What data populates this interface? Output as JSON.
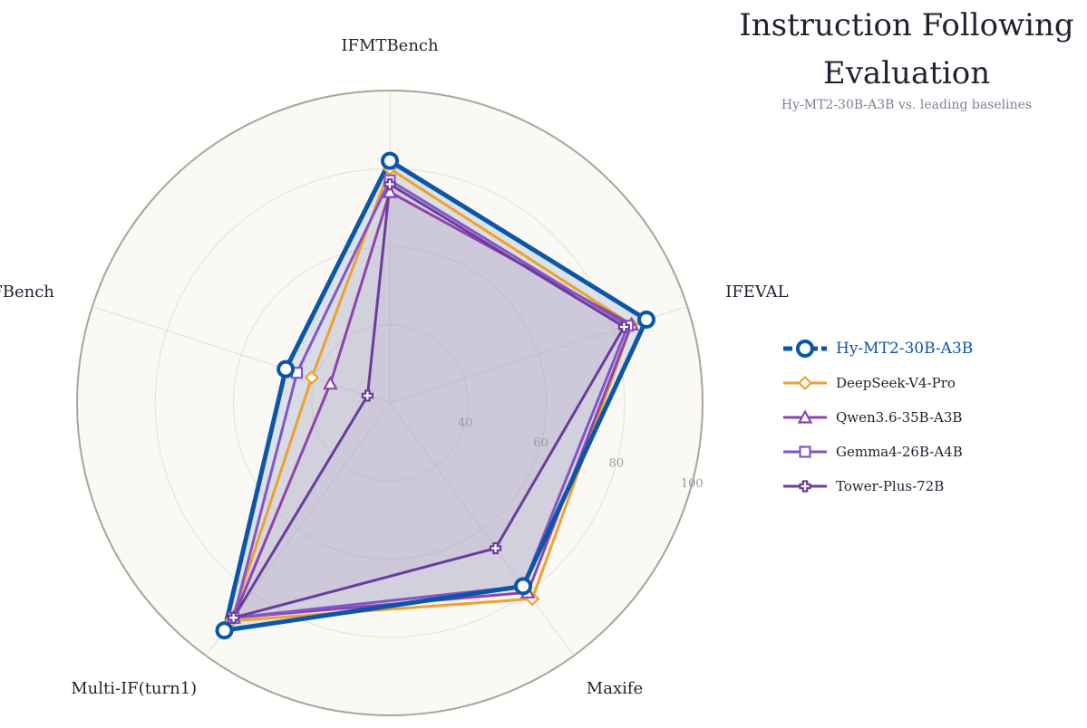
{
  "chart_data": {
    "type": "radar",
    "title": "Instruction Following\nEvaluation",
    "title_lines": [
      "Instruction Following",
      "Evaluation"
    ],
    "subtitle": "Hy-MT2-30B-A3B vs. leading baselines",
    "axes": [
      "IFMTBench",
      "IFEVAL",
      "Maxife",
      "Multi-IF(turn1)",
      "IFBench"
    ],
    "radial_range": [
      20,
      100
    ],
    "radial_ticks": [
      40,
      60,
      80,
      100
    ],
    "radial_tick_labels": [
      "40",
      "60",
      "80",
      "100"
    ],
    "grid": true,
    "legend_position": "right",
    "series": [
      {
        "name": "Hy-MT2-30B-A3B",
        "values": [
          82,
          89,
          78,
          92,
          48
        ],
        "color": "#0b56a8",
        "marker": "circle",
        "primary": true
      },
      {
        "name": "DeepSeek-V4-Pro",
        "values": [
          80,
          85,
          82,
          89,
          41
        ],
        "color": "#eda12e",
        "marker": "diamond",
        "primary": false
      },
      {
        "name": "Qwen3.6-35B-A3B",
        "values": [
          74,
          85,
          80,
          88,
          36
        ],
        "color": "#8e44ad",
        "marker": "triangle",
        "primary": false
      },
      {
        "name": "Gemma4-26B-A4B",
        "values": [
          77,
          84,
          78,
          88,
          45
        ],
        "color": "#8455c9",
        "marker": "square",
        "primary": false
      },
      {
        "name": "Tower-Plus-72B",
        "values": [
          76,
          83,
          66,
          88,
          26
        ],
        "color": "#6a3d9a",
        "marker": "plus",
        "primary": false
      }
    ]
  }
}
